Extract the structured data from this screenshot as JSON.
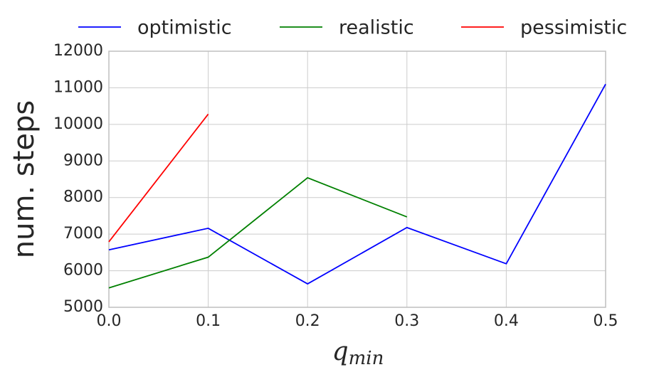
{
  "chart_data": {
    "type": "line",
    "xlabel": {
      "base": "q",
      "subscript": "min"
    },
    "ylabel": "num. steps",
    "x": [
      0,
      0.1,
      0.2,
      0.3,
      0.4,
      0.5
    ],
    "series": [
      {
        "name": "optimistic",
        "color": "#0000ff",
        "values": [
          6570,
          7160,
          5640,
          7180,
          6190,
          11100
        ]
      },
      {
        "name": "realistic",
        "color": "#008000",
        "values": [
          5530,
          6370,
          8540,
          7470,
          null,
          null
        ]
      },
      {
        "name": "pessimistic",
        "color": "#ff0000",
        "values": [
          6790,
          10280,
          null,
          null,
          null,
          null
        ]
      }
    ],
    "xlim": [
      0,
      0.5
    ],
    "xticks": [
      {
        "value": 0,
        "label": "0.0"
      },
      0.1,
      0.2,
      0.3,
      0.4,
      0.5
    ],
    "ylim": [
      5000,
      12000
    ],
    "yticks": [
      5000,
      6000,
      7000,
      8000,
      9000,
      10000,
      11000,
      12000
    ],
    "grid": true,
    "legend": "top"
  }
}
